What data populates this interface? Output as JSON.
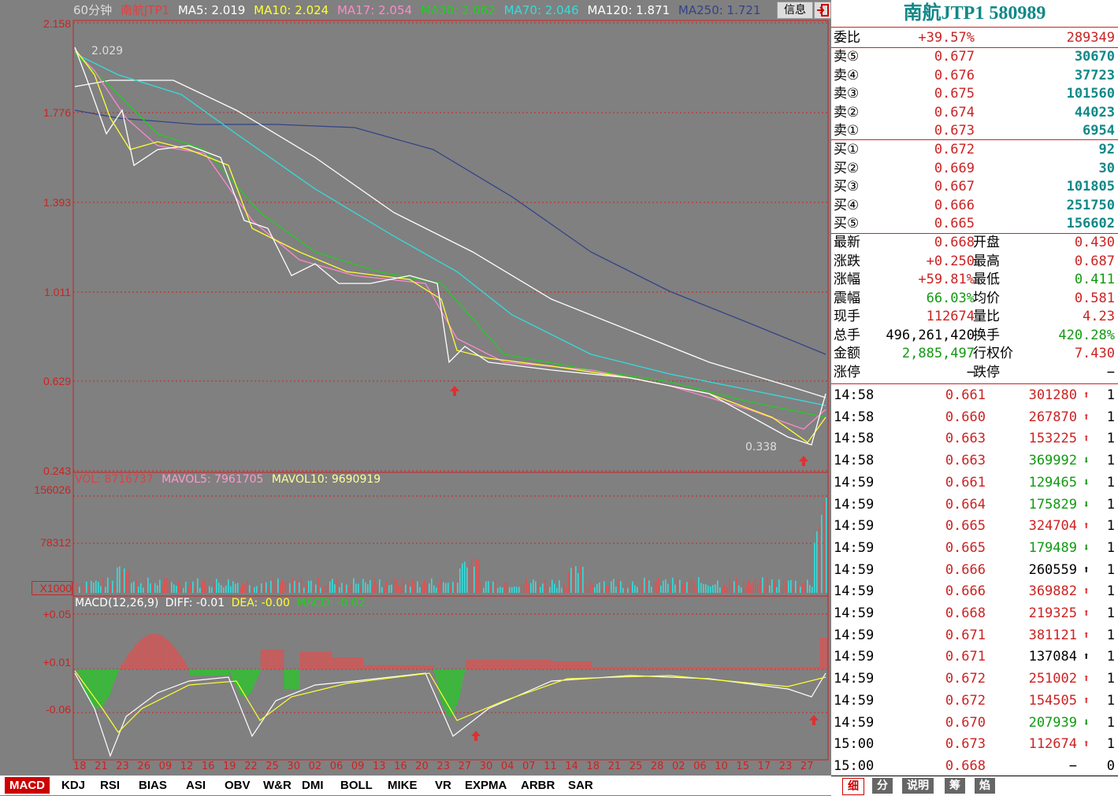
{
  "chart_header": {
    "period": "60分钟",
    "name": "南航JTP1",
    "ma5": "MA5: 2.019",
    "ma10": "MA10: 2.024",
    "ma17": "MA17: 2.054",
    "ma30": "MA30: 2.062",
    "ma70": "MA70: 2.046",
    "ma120": "MA120: 1.871",
    "ma250": "MA250: 1.721",
    "info_button": "信息"
  },
  "price_axis": [
    "2.158",
    "1.776",
    "1.393",
    "1.011",
    "0.629",
    "0.243"
  ],
  "annotations": {
    "high": "2.029",
    "low": "0.338"
  },
  "vol_header": {
    "vol": "VOL: 8716737",
    "mavol5": "MAVOL5: 7961705",
    "mavol10": "MAVOL10: 9690919"
  },
  "vol_axis": [
    "156026",
    "78312",
    "X1000"
  ],
  "macd_header": {
    "macd": "MACD(12,26,9)",
    "diff": "DIFF: -0.01",
    "dea": "DEA: -0.00",
    "macd_val": "MACD: -0.02"
  },
  "macd_axis": [
    "+0.05",
    "+0.01",
    "-0.06"
  ],
  "date_axis": [
    "18",
    "21",
    "23",
    "26",
    "09",
    "12",
    "16",
    "19",
    "22",
    "25",
    "30",
    "02",
    "06",
    "09",
    "13",
    "16",
    "20",
    "23",
    "27",
    "30",
    "04",
    "07",
    "11",
    "14",
    "18",
    "21",
    "25",
    "28",
    "02",
    "06",
    "10",
    "15",
    "17",
    "23",
    "27"
  ],
  "tabs": [
    "MACD",
    "KDJ",
    "RSI",
    "BIAS",
    "ASI",
    "OBV",
    "W&R",
    "DMI",
    "BOLL",
    "MIKE",
    "VR",
    "EXPMA",
    "ARBR",
    "SAR"
  ],
  "panel": {
    "title": "南航JTP1 580989",
    "weibi": {
      "label": "委比",
      "pct": "+39.57%",
      "val": "289349"
    },
    "sells": [
      {
        "label": "卖⑤",
        "price": "0.677",
        "vol": "30670"
      },
      {
        "label": "卖④",
        "price": "0.676",
        "vol": "37723"
      },
      {
        "label": "卖③",
        "price": "0.675",
        "vol": "101560"
      },
      {
        "label": "卖②",
        "price": "0.674",
        "vol": "44023"
      },
      {
        "label": "卖①",
        "price": "0.673",
        "vol": "6954"
      }
    ],
    "buys": [
      {
        "label": "买①",
        "price": "0.672",
        "vol": "92"
      },
      {
        "label": "买②",
        "price": "0.669",
        "vol": "30"
      },
      {
        "label": "买③",
        "price": "0.667",
        "vol": "101805"
      },
      {
        "label": "买④",
        "price": "0.666",
        "vol": "251750"
      },
      {
        "label": "买⑤",
        "price": "0.665",
        "vol": "156602"
      }
    ],
    "stats": [
      {
        "l1": "最新",
        "v1": "0.668",
        "l2": "开盘",
        "v2": "0.430",
        "c1": "red",
        "c2": "red"
      },
      {
        "l1": "涨跌",
        "v1": "+0.250",
        "l2": "最高",
        "v2": "0.687",
        "c1": "red",
        "c2": "red"
      },
      {
        "l1": "涨幅",
        "v1": "+59.81%",
        "l2": "最低",
        "v2": "0.411",
        "c1": "red",
        "c2": "green"
      },
      {
        "l1": "震幅",
        "v1": "66.03%",
        "l2": "均价",
        "v2": "0.581",
        "c1": "green",
        "c2": "red"
      },
      {
        "l1": "现手",
        "v1": "112674",
        "l2": "量比",
        "v2": "4.23",
        "c1": "red",
        "c2": "red"
      },
      {
        "l1": "总手",
        "v1": "496,261,420",
        "l2": "换手",
        "v2": "420.28%",
        "c1": "black",
        "c2": "green"
      },
      {
        "l1": "金额",
        "v1": "2,885,497",
        "l2": "行权价",
        "v2": "7.430",
        "c1": "green",
        "c2": "red"
      },
      {
        "l1": "涨停",
        "v1": "−",
        "l2": "跌停",
        "v2": "−",
        "c1": "black",
        "c2": "black"
      }
    ],
    "ticks": [
      {
        "time": "14:58",
        "price": "0.661",
        "vol": "301280",
        "dir": "up",
        "cnt": "1"
      },
      {
        "time": "14:58",
        "price": "0.660",
        "vol": "267870",
        "dir": "up",
        "cnt": "1"
      },
      {
        "time": "14:58",
        "price": "0.663",
        "vol": "153225",
        "dir": "up",
        "cnt": "1"
      },
      {
        "time": "14:58",
        "price": "0.663",
        "vol": "369992",
        "dir": "down",
        "cnt": "1"
      },
      {
        "time": "14:59",
        "price": "0.661",
        "vol": "129465",
        "dir": "down",
        "cnt": "1"
      },
      {
        "time": "14:59",
        "price": "0.664",
        "vol": "175829",
        "dir": "down",
        "cnt": "1"
      },
      {
        "time": "14:59",
        "price": "0.665",
        "vol": "324704",
        "dir": "up",
        "cnt": "1"
      },
      {
        "time": "14:59",
        "price": "0.665",
        "vol": "179489",
        "dir": "down",
        "cnt": "1"
      },
      {
        "time": "14:59",
        "price": "0.666",
        "vol": "260559",
        "dir": "upb",
        "cnt": "1"
      },
      {
        "time": "14:59",
        "price": "0.666",
        "vol": "369882",
        "dir": "up",
        "cnt": "1"
      },
      {
        "time": "14:59",
        "price": "0.668",
        "vol": "219325",
        "dir": "up",
        "cnt": "1"
      },
      {
        "time": "14:59",
        "price": "0.671",
        "vol": "381121",
        "dir": "up",
        "cnt": "1"
      },
      {
        "time": "14:59",
        "price": "0.671",
        "vol": "137084",
        "dir": "upb",
        "cnt": "1"
      },
      {
        "time": "14:59",
        "price": "0.672",
        "vol": "251002",
        "dir": "up",
        "cnt": "1"
      },
      {
        "time": "14:59",
        "price": "0.672",
        "vol": "154505",
        "dir": "up",
        "cnt": "1"
      },
      {
        "time": "14:59",
        "price": "0.670",
        "vol": "207939",
        "dir": "down",
        "cnt": "1"
      },
      {
        "time": "15:00",
        "price": "0.673",
        "vol": "112674",
        "dir": "up",
        "cnt": "1"
      },
      {
        "time": "15:00",
        "price": "0.668",
        "vol": "−",
        "dir": "none",
        "cnt": "0"
      }
    ],
    "bottom_tabs": [
      "细",
      "分",
      "说明",
      "筹",
      "焰"
    ]
  }
}
